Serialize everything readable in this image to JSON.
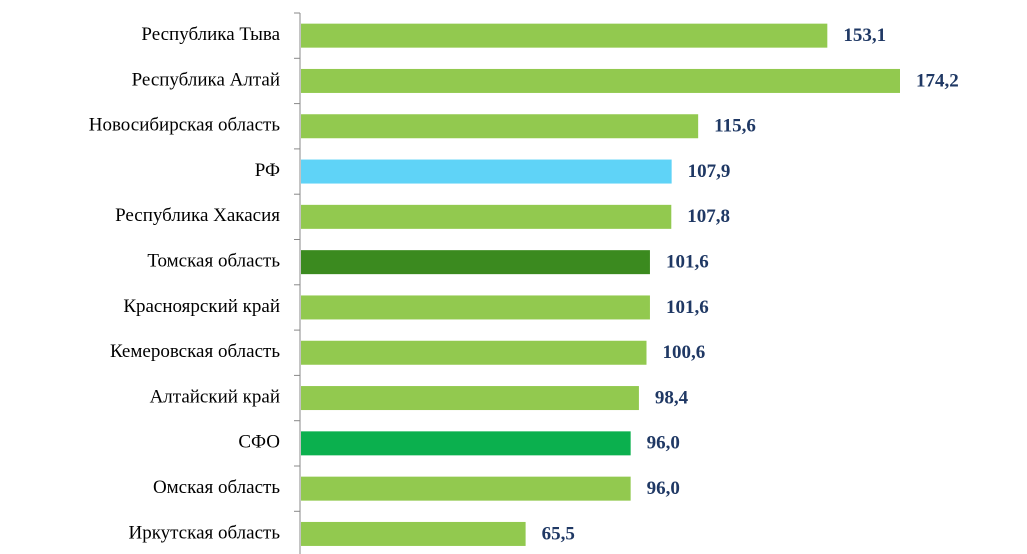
{
  "chart_data": {
    "type": "barh",
    "categories": [
      "Республика Тыва",
      "Республика Алтай",
      "Новосибирская область",
      "РФ",
      "Республика Хакасия",
      "Томская область",
      "Красноярский край",
      "Кемеровская область",
      "Алтайский край",
      "СФО",
      "Омская область",
      "Иркутская область"
    ],
    "values": [
      153.1,
      174.2,
      115.6,
      107.9,
      107.8,
      101.6,
      101.6,
      100.6,
      98.4,
      96.0,
      96.0,
      65.5
    ],
    "value_labels": [
      "153,1",
      "174,2",
      "115,6",
      "107,9",
      "107,8",
      "101,6",
      "101,6",
      "100,6",
      "98,4",
      "96,0",
      "96,0",
      "65,5"
    ],
    "colors": [
      "#92c94f",
      "#92c94f",
      "#92c94f",
      "#5fd3f7",
      "#92c94f",
      "#3b8a1f",
      "#92c94f",
      "#92c94f",
      "#92c94f",
      "#0bb04e",
      "#92c94f",
      "#92c94f"
    ],
    "label_color": "#1f3864"
  }
}
